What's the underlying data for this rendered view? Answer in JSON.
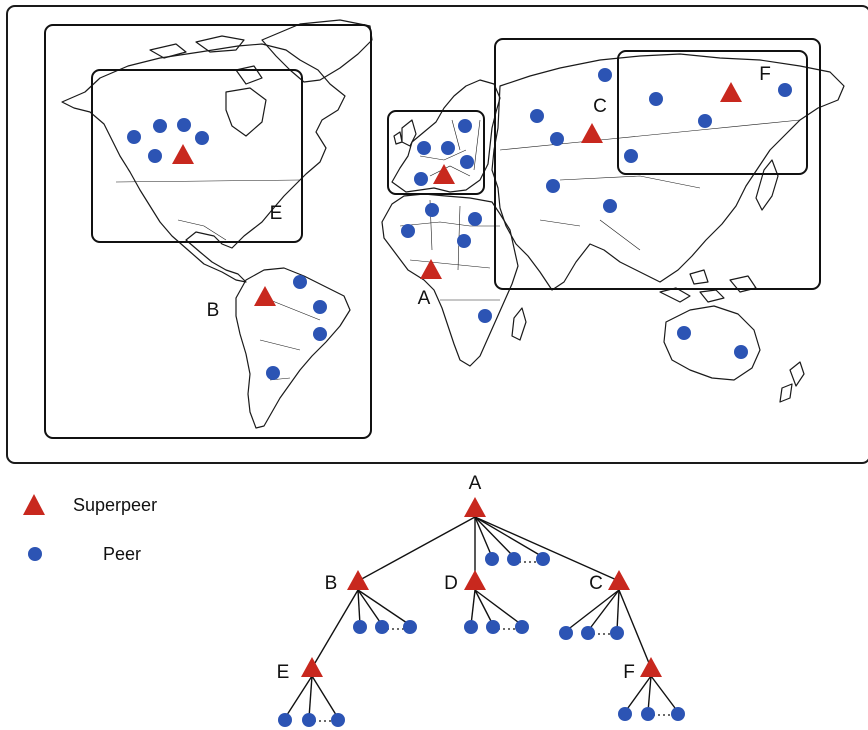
{
  "colors": {
    "superpeer": "#c8281e",
    "peer": "#2c54b4",
    "outline": "#111111"
  },
  "icons": {
    "superpeer": "red-triangle-icon",
    "peer": "blue-dot-icon"
  },
  "legend": {
    "superpeer_label": "Superpeer",
    "peer_label": "Peer"
  },
  "map": {
    "regions": [
      {
        "id": "A",
        "label": "A"
      },
      {
        "id": "B",
        "label": "B"
      },
      {
        "id": "C",
        "label": "C"
      },
      {
        "id": "E",
        "label": "E"
      },
      {
        "id": "F",
        "label": "F"
      }
    ]
  },
  "tree": {
    "nodes": [
      {
        "id": "A",
        "label": "A",
        "parent": null
      },
      {
        "id": "B",
        "label": "B",
        "parent": "A"
      },
      {
        "id": "D",
        "label": "D",
        "parent": "A"
      },
      {
        "id": "C",
        "label": "C",
        "parent": "A"
      },
      {
        "id": "E",
        "label": "E",
        "parent": "B"
      },
      {
        "id": "F",
        "label": "F",
        "parent": "C"
      }
    ]
  }
}
